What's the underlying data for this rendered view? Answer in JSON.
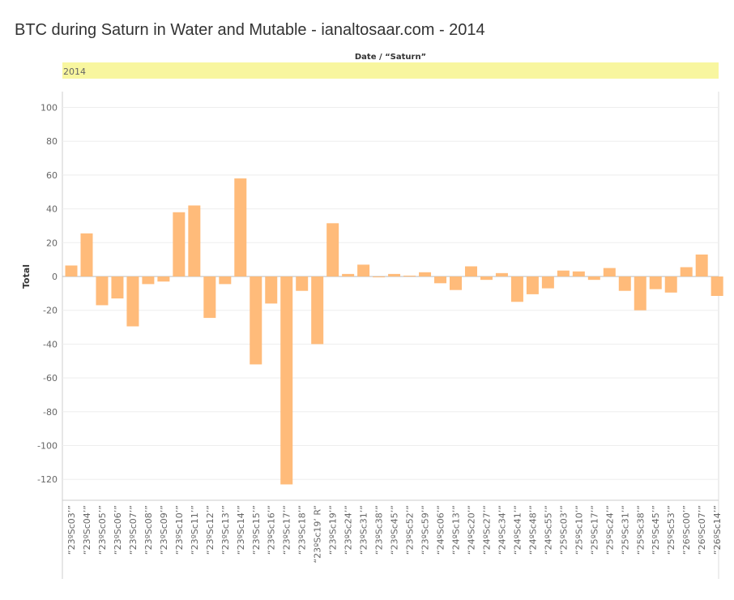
{
  "title": "BTC during Saturn in Water and Mutable - ianaltosaar.com - 2014",
  "column_header": "Date / “Saturn”",
  "year_label": "2014",
  "colors": {
    "bar": "#ffbb7a",
    "year_band": "#f8f69f",
    "grid": "#eeeeee",
    "axis_text": "#666666"
  },
  "chart_data": {
    "type": "bar",
    "xlabel": "",
    "ylabel": "Total",
    "ylim": [
      -130,
      115
    ],
    "yticks": [
      100,
      80,
      60,
      40,
      20,
      0,
      -20,
      -40,
      -60,
      -80,
      -100,
      -120
    ],
    "grid": true,
    "categories": [
      "“23ºSc03’”",
      "“23ºSc04’”",
      "“23ºSc05’”",
      "“23ºSc06’”",
      "“23ºSc07’”",
      "“23ºSc08’”",
      "“23ºSc09’”",
      "“23ºSc10’”",
      "“23ºSc11’”",
      "“23ºSc12’”",
      "“23ºSc13’”",
      "“23ºSc14’”",
      "“23ºSc15’”",
      "“23ºSc16’”",
      "“23ºSc17’”",
      "“23ºSc18’”",
      "“23ºSc19’ R”",
      "“23ºSc19’”",
      "“23ºSc24’”",
      "“23ºSc31’”",
      "“23ºSc38’”",
      "“23ºSc45’”",
      "“23ºSc52’”",
      "“23ºSc59’”",
      "“24ºSc06’”",
      "“24ºSc13’”",
      "“24ºSc20’”",
      "“24ºSc27’”",
      "“24ºSc34’”",
      "“24ºSc41’”",
      "“24ºSc48’”",
      "“24ºSc55’”",
      "“25ºSc03’”",
      "“25ºSc10’”",
      "“25ºSc17’”",
      "“25ºSc24’”",
      "“25ºSc31’”",
      "“25ºSc38’”",
      "“25ºSc45’”",
      "“25ºSc53’”",
      "“26ºSc00’”",
      "“26ºSc07’”",
      "“26ºSc14’”"
    ],
    "values": [
      6.5,
      25.5,
      -17,
      -13,
      -29.5,
      -4.5,
      -3,
      38,
      42,
      -24.5,
      -4.5,
      58,
      -52,
      -16,
      -123,
      -8.5,
      -40,
      31.5,
      1.5,
      7,
      -0.5,
      1.5,
      0.5,
      2.5,
      -4,
      -8,
      6,
      -2,
      2,
      -15,
      -10.5,
      -7,
      3.5,
      3,
      -2,
      5,
      -8.5,
      -20,
      -7.5,
      -9.5,
      5.5,
      13,
      -11.5
    ]
  }
}
